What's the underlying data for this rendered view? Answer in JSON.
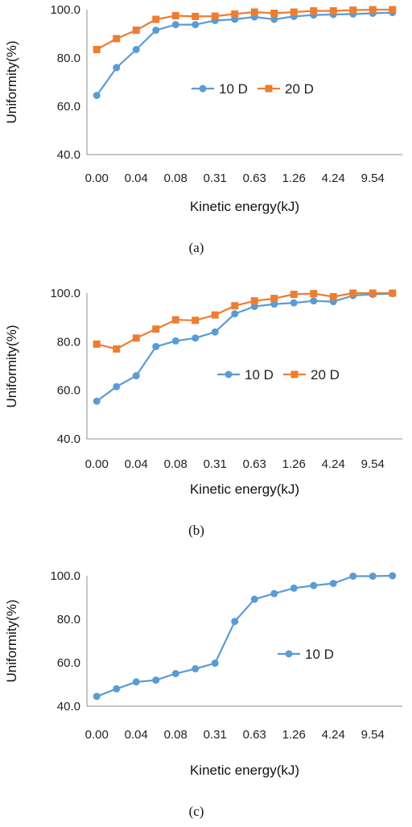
{
  "colors": {
    "series_1": "#5B9BD5",
    "series_2": "#ED7D31",
    "axis": "#8c8c8c"
  },
  "chart_data": [
    {
      "type": "line",
      "caption": "(a)",
      "xlabel": "Kinetic energy(kJ)",
      "ylabel": "Uniformity(%)",
      "ylim": [
        40,
        100
      ],
      "yticks": [
        "40.0",
        "60.0",
        "80.0",
        "100.0"
      ],
      "categories": [
        "0.00",
        "",
        "0.04",
        "",
        "0.08",
        "",
        "0.31",
        "",
        "0.63",
        "",
        "1.26",
        "",
        "4.24",
        "",
        "9.54",
        ""
      ],
      "grid": false,
      "legend_position": "right",
      "series": [
        {
          "name": "10 D",
          "marker": "circle",
          "color": "#5B9BD5",
          "values": [
            64.5,
            76,
            83.5,
            91.5,
            93.8,
            93.8,
            95.5,
            96,
            97,
            96,
            97.2,
            97.8,
            98,
            98.2,
            98.5,
            98.8
          ]
        },
        {
          "name": "20 D",
          "marker": "square",
          "color": "#ED7D31",
          "values": [
            83.5,
            88,
            91.5,
            96,
            97.5,
            97.2,
            97.3,
            98.2,
            99,
            98.5,
            99,
            99.5,
            99.5,
            99.8,
            100,
            100
          ]
        }
      ]
    },
    {
      "type": "line",
      "caption": "(b)",
      "xlabel": "Kinetic energy(kJ)",
      "ylabel": "Uniformity(%)",
      "ylim": [
        40,
        100
      ],
      "yticks": [
        "40.0",
        "60.0",
        "80.0",
        "100.0"
      ],
      "categories": [
        "0.00",
        "",
        "0.04",
        "",
        "0.08",
        "",
        "0.31",
        "",
        "0.63",
        "",
        "1.26",
        "",
        "4.24",
        "",
        "9.54",
        ""
      ],
      "grid": false,
      "legend_position": "center-right",
      "series": [
        {
          "name": "10 D",
          "marker": "circle",
          "color": "#5B9BD5",
          "values": [
            55.5,
            61.5,
            66,
            78,
            80.3,
            81.5,
            84,
            91.5,
            94.5,
            95.5,
            96,
            96.8,
            96.5,
            99,
            99.5,
            99.8
          ]
        },
        {
          "name": "20 D",
          "marker": "square",
          "color": "#ED7D31",
          "values": [
            79,
            77,
            81.5,
            85.2,
            89,
            88.8,
            91,
            94.8,
            96.8,
            97.8,
            99.5,
            99.8,
            98.5,
            100,
            100,
            100
          ]
        }
      ]
    },
    {
      "type": "line",
      "caption": "(c)",
      "xlabel": "Kinetic energy(kJ)",
      "ylabel": "Uniformity(%)",
      "ylim": [
        40,
        100
      ],
      "yticks": [
        "40.0",
        "60.0",
        "80.0",
        "100.0"
      ],
      "categories": [
        "0.00",
        "",
        "0.04",
        "",
        "0.08",
        "",
        "0.31",
        "",
        "0.63",
        "",
        "1.26",
        "",
        "4.24",
        "",
        "9.54",
        ""
      ],
      "grid": false,
      "legend_position": "center-right",
      "series": [
        {
          "name": "10 D",
          "marker": "circle",
          "color": "#5B9BD5",
          "values": [
            44.5,
            48,
            51.2,
            52,
            55,
            57.2,
            59.8,
            79,
            89.2,
            91.8,
            94.3,
            95.5,
            96.5,
            99.8,
            99.8,
            100
          ]
        }
      ]
    }
  ]
}
